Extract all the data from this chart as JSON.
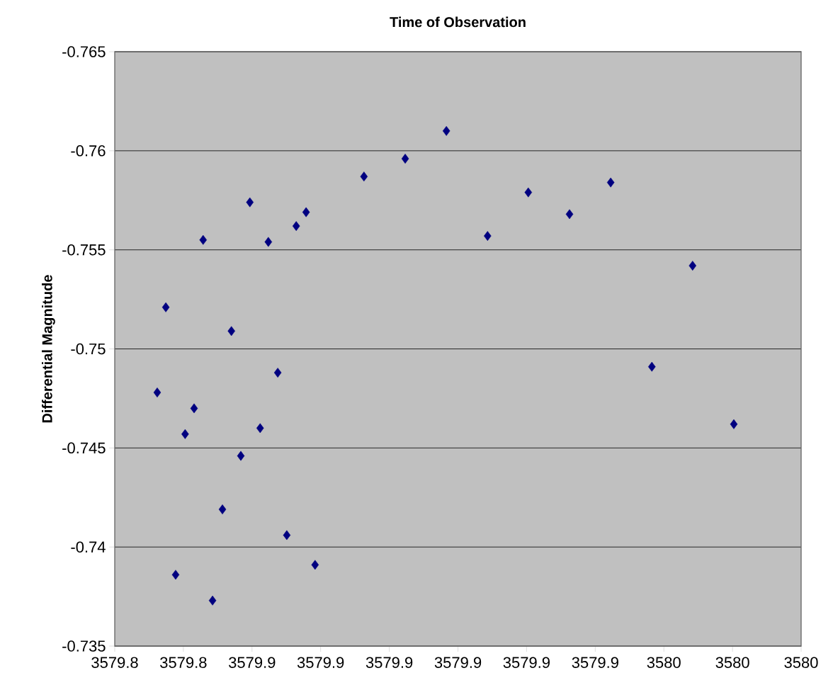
{
  "chart_data": {
    "type": "scatter",
    "title": "Time of Observation",
    "ylabel": "Differential Magnitude",
    "x": [
      3579.8359,
      3579.8379,
      3579.8402,
      3579.8424,
      3579.8445,
      3579.8466,
      3579.8488,
      3579.8511,
      3579.8532,
      3579.8554,
      3579.8575,
      3579.8599,
      3579.8618,
      3579.864,
      3579.8661,
      3579.8683,
      3579.8706,
      3579.8727,
      3579.8841,
      3579.8937,
      3579.9033,
      3579.9129,
      3579.9224,
      3579.932,
      3579.9416,
      3579.9512,
      3579.9607,
      3579.9703
    ],
    "series": [
      {
        "color": "#000080",
        "values": [
          -0.7478,
          -0.7521,
          -0.7386,
          -0.7457,
          -0.747,
          -0.7555,
          -0.7373,
          -0.7419,
          -0.7509,
          -0.7446,
          -0.7574,
          -0.746,
          -0.7554,
          -0.7488,
          -0.7406,
          -0.7562,
          -0.7569,
          -0.7391,
          -0.7587,
          -0.7596,
          -0.761,
          -0.7557,
          -0.7579,
          -0.7568,
          -0.7584,
          -0.7491,
          -0.7542,
          -0.7462
        ]
      }
    ],
    "marker": "diamond",
    "grid": "y",
    "xlim": [
      3579.826,
      3579.986
    ],
    "xticks": [
      {
        "value": 3579.826,
        "label": "3579.8"
      },
      {
        "value": 3579.842,
        "label": "3579.8"
      },
      {
        "value": 3579.858,
        "label": "3579.9"
      },
      {
        "value": 3579.874,
        "label": "3579.9"
      },
      {
        "value": 3579.89,
        "label": "3579.9"
      },
      {
        "value": 3579.906,
        "label": "3579.9"
      },
      {
        "value": 3579.922,
        "label": "3579.9"
      },
      {
        "value": 3579.938,
        "label": "3579.9"
      },
      {
        "value": 3579.954,
        "label": "3580"
      },
      {
        "value": 3579.97,
        "label": "3580"
      },
      {
        "value": 3579.986,
        "label": "3580"
      }
    ],
    "ylim": [
      -0.735,
      -0.765
    ],
    "yticks": [
      -0.735,
      -0.74,
      -0.745,
      -0.75,
      -0.755,
      -0.76,
      -0.765
    ]
  }
}
